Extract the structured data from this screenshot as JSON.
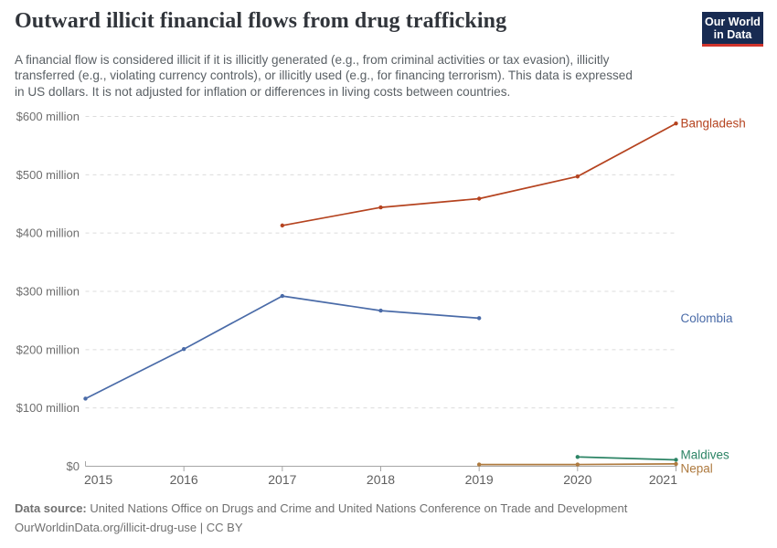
{
  "header": {
    "title": "Outward illicit financial flows from drug trafficking",
    "subtitle_lines": [
      "A financial flow is considered illicit if it is illicitly generated (e.g., from criminal activities or tax evasion), illicitly",
      "transferred (e.g., violating currency controls), or illicitly used (e.g., for financing terrorism). This data is expressed",
      "in US dollars. It is not adjusted for inflation or differences in living costs between countries."
    ],
    "logo": {
      "line1": "Our World",
      "line2": "in Data"
    }
  },
  "theme": {
    "title_color": "#31353B",
    "subtitle_color": "#5A6065",
    "footer_color": "#707070",
    "logo_bg": "#182B52",
    "logo_bar": "#D0342C",
    "grid_color": "#DCDCDC",
    "axis_color": "#A6A6A6",
    "y_tick_label_color": "#6E6E6E",
    "x_tick_label_color": "#5F5F5F"
  },
  "chart_data": {
    "type": "line",
    "title": "Outward illicit financial flows from drug trafficking",
    "unit": "US dollars",
    "xlabel": "",
    "ylabel": "",
    "grid": true,
    "legend_position": "right-edge-labels",
    "x_range": [
      2015,
      2021
    ],
    "y_range": [
      0,
      600
    ],
    "x_ticks": [
      {
        "value": 2015,
        "label": "2015"
      },
      {
        "value": 2016,
        "label": "2016"
      },
      {
        "value": 2017,
        "label": "2017"
      },
      {
        "value": 2018,
        "label": "2018"
      },
      {
        "value": 2019,
        "label": "2019"
      },
      {
        "value": 2020,
        "label": "2020"
      },
      {
        "value": 2021,
        "label": "2021"
      }
    ],
    "y_ticks": [
      {
        "value": 0,
        "label": "$0"
      },
      {
        "value": 100,
        "label": "$100 million"
      },
      {
        "value": 200,
        "label": "$200 million"
      },
      {
        "value": 300,
        "label": "$300 million"
      },
      {
        "value": 400,
        "label": "$400 million"
      },
      {
        "value": 500,
        "label": "$500 million"
      },
      {
        "value": 600,
        "label": "$600 million"
      }
    ],
    "series": [
      {
        "name": "Bangladesh",
        "color": "#B5431F",
        "points": [
          {
            "year": 2017,
            "value": 413
          },
          {
            "year": 2018,
            "value": 444
          },
          {
            "year": 2019,
            "value": 459
          },
          {
            "year": 2020,
            "value": 497
          },
          {
            "year": 2021,
            "value": 588
          }
        ]
      },
      {
        "name": "Colombia",
        "color": "#4A6BA8",
        "points": [
          {
            "year": 2015,
            "value": 116
          },
          {
            "year": 2016,
            "value": 201
          },
          {
            "year": 2017,
            "value": 292
          },
          {
            "year": 2018,
            "value": 267
          },
          {
            "year": 2019,
            "value": 254
          }
        ]
      },
      {
        "name": "Maldives",
        "color": "#2C8465",
        "points": [
          {
            "year": 2020,
            "value": 16
          },
          {
            "year": 2021,
            "value": 11
          }
        ]
      },
      {
        "name": "Nepal",
        "color": "#AE7A3F",
        "points": [
          {
            "year": 2019,
            "value": 3
          },
          {
            "year": 2020,
            "value": 3
          },
          {
            "year": 2021,
            "value": 4
          }
        ]
      }
    ]
  },
  "footer": {
    "source_label": "Data source:",
    "source_text": " United Nations Office on Drugs and Crime and United Nations Conference on Trade and Development",
    "link_line": "OurWorldinData.org/illicit-drug-use | CC BY"
  }
}
